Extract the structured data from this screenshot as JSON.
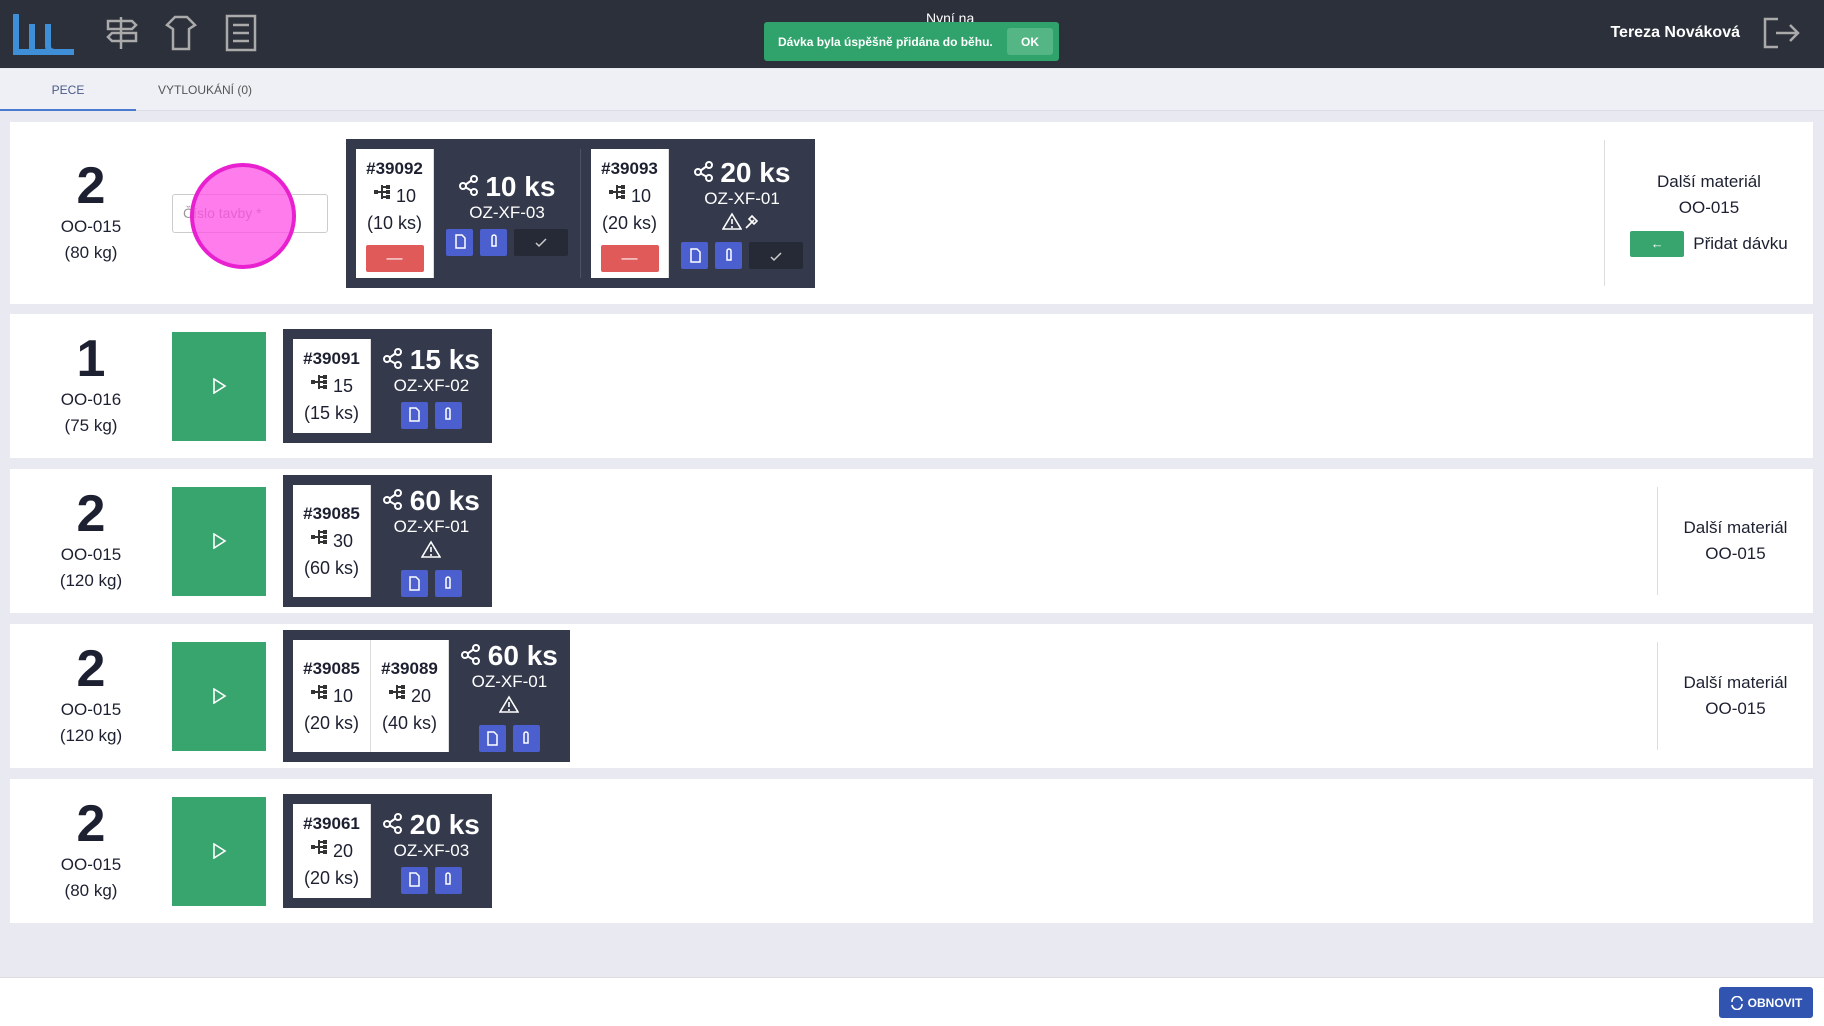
{
  "header": {
    "title": "Nyní na",
    "user": "Tereza Nováková"
  },
  "toast": {
    "message": "Dávka byla úspěšně přidána do běhu.",
    "button": "OK"
  },
  "tabs": [
    "PECE",
    "VYTLOUKÁNÍ (0)"
  ],
  "rows": [
    {
      "count": "2",
      "material": "OO-015",
      "weight": "(80 kg)",
      "input": "Číslo tavby *",
      "groups": [
        {
          "orders": [
            {
              "id": "#39092",
              "qty": "10",
              "pieces": "(10 ks)"
            }
          ],
          "total": "10 ks",
          "code": "OZ-XF-03",
          "editable": true
        },
        {
          "orders": [
            {
              "id": "#39093",
              "qty": "10",
              "pieces": "(20 ks)"
            }
          ],
          "total": "20 ks",
          "code": "OZ-XF-01",
          "editable": true,
          "warning": true,
          "tool": true
        }
      ],
      "side": {
        "label": "Další materiál",
        "material": "OO-015",
        "action": "Přidat dávku"
      }
    },
    {
      "count": "1",
      "material": "OO-016",
      "weight": "(75 kg)",
      "groups": [
        {
          "orders": [
            {
              "id": "#39091",
              "qty": "15",
              "pieces": "(15 ks)"
            }
          ],
          "total": "15 ks",
          "code": "OZ-XF-02"
        }
      ]
    },
    {
      "count": "2",
      "material": "OO-015",
      "weight": "(120 kg)",
      "groups": [
        {
          "orders": [
            {
              "id": "#39085",
              "qty": "30",
              "pieces": "(60 ks)"
            }
          ],
          "total": "60 ks",
          "code": "OZ-XF-01",
          "warning": true
        }
      ],
      "side": {
        "label": "Další materiál",
        "material": "OO-015"
      }
    },
    {
      "count": "2",
      "material": "OO-015",
      "weight": "(120 kg)",
      "groups": [
        {
          "orders": [
            {
              "id": "#39085",
              "qty": "10",
              "pieces": "(20 ks)"
            },
            {
              "id": "#39089",
              "qty": "20",
              "pieces": "(40 ks)"
            }
          ],
          "total": "60 ks",
          "code": "OZ-XF-01",
          "warning": true
        }
      ],
      "side": {
        "label": "Další materiál",
        "material": "OO-015"
      }
    },
    {
      "count": "2",
      "material": "OO-015",
      "weight": "(80 kg)",
      "groups": [
        {
          "orders": [
            {
              "id": "#39061",
              "qty": "20",
              "pieces": "(20 ks)"
            }
          ],
          "total": "20 ks",
          "code": "OZ-XF-03"
        }
      ]
    }
  ],
  "footer": {
    "refresh": "OBNOVIT"
  }
}
